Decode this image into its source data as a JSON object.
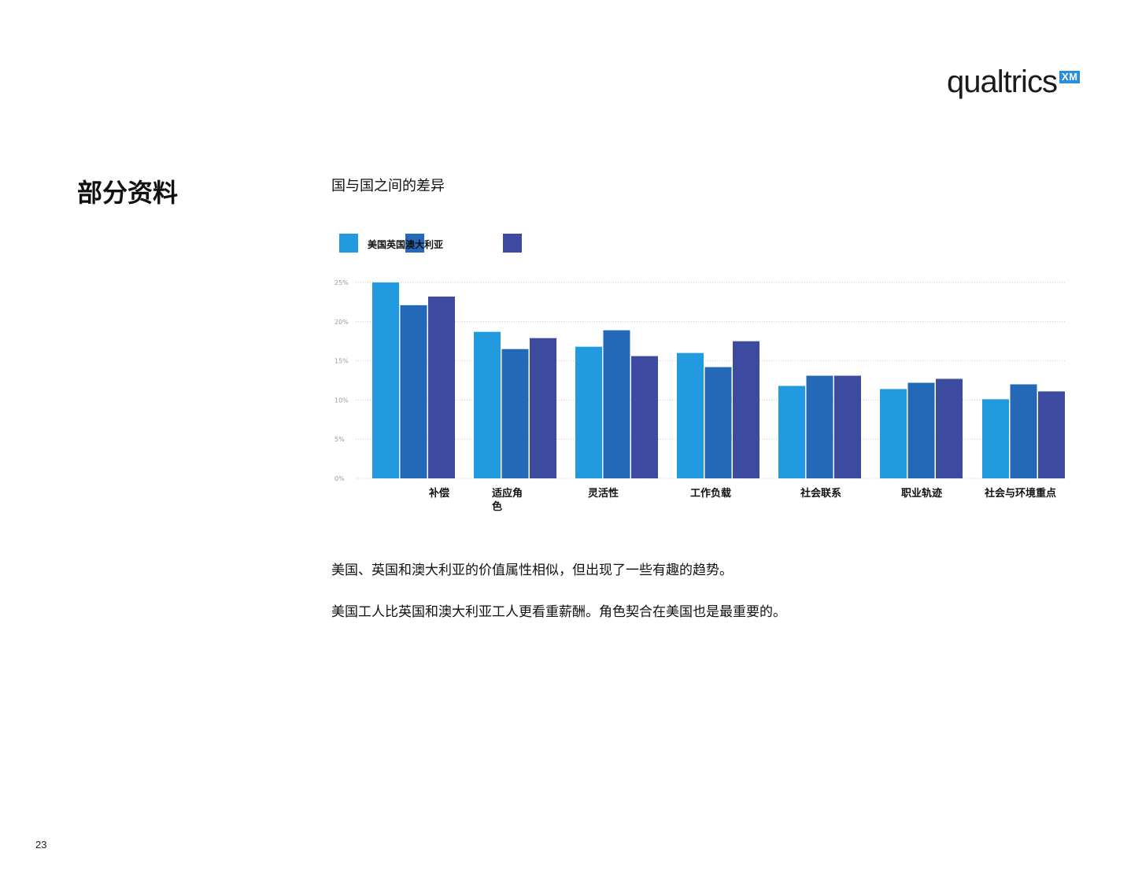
{
  "logo": {
    "word": "qualtrics",
    "badge": "XM"
  },
  "section_title": "部分资料",
  "chart_data": {
    "type": "bar",
    "title": "国与国之间的差异",
    "legend_text": "美国英国澳大利亚",
    "legend_placement": "top-left",
    "categories": [
      "补偿",
      "适应角色",
      "灵活性",
      "工作负载",
      "社会联系",
      "职业轨迹",
      "社会与环境重点"
    ],
    "category_labels": [
      "补偿",
      "适应角\n色",
      "灵活性",
      "工作负载",
      "社会联系",
      "职业轨迹",
      "社会与环境重点"
    ],
    "series": [
      {
        "name": "美国",
        "color": "#229adf",
        "values": [
          25,
          18.7,
          16.8,
          16,
          11.8,
          11.4,
          10.1
        ]
      },
      {
        "name": "英国",
        "color": "#2369b8",
        "values": [
          22.1,
          16.5,
          18.9,
          14.2,
          13.1,
          12.2,
          12
        ]
      },
      {
        "name": "澳大利亚",
        "color": "#3c4aa0",
        "values": [
          23.2,
          17.9,
          15.6,
          17.5,
          13.1,
          12.7,
          11.1
        ]
      }
    ],
    "yticks": [
      "25%",
      "20%",
      "15%",
      "10%",
      "5%",
      "0%"
    ],
    "ylim": [
      0,
      25
    ],
    "grid": true
  },
  "body_lines": [
    "美国、英国和澳大利亚的价值属性相似，但出现了一些有趣的趋势。",
    "美国工人比英国和澳大利亚工人更看重薪酬。角色契合在美国也是最重要的。"
  ],
  "page_number": "23"
}
